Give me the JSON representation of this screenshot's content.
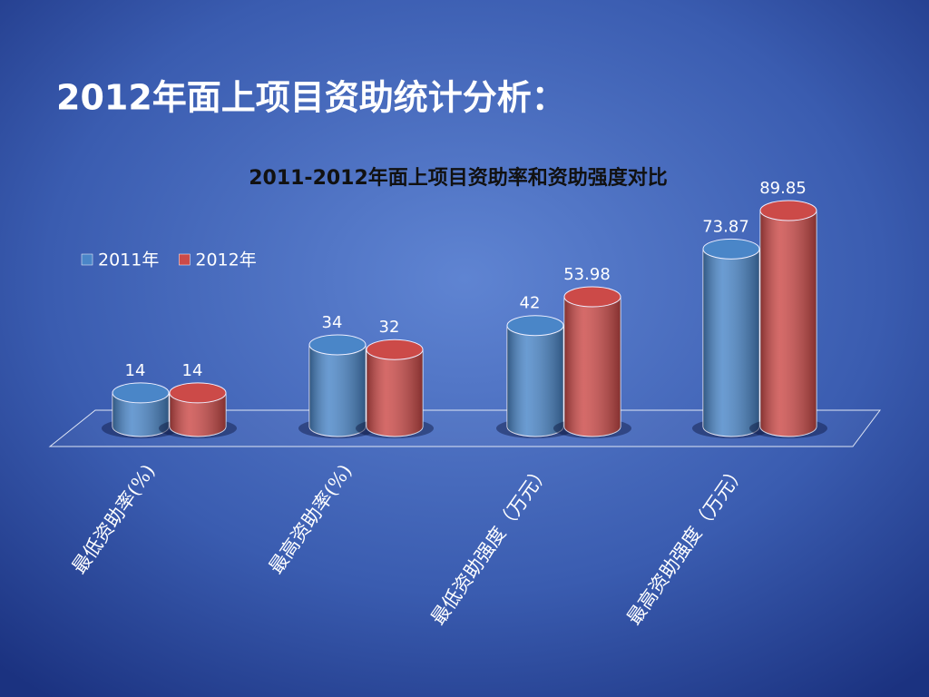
{
  "slide_title": "2012年面上项目资助统计分析：",
  "chart_data": {
    "type": "bar",
    "title": "2011-2012年面上项目资助率和资助强度对比",
    "categories": [
      "最低资助率(%)",
      "最高资助率(%)",
      "最低资助强度（万元）",
      "最高资助强度（万元）"
    ],
    "series": [
      {
        "name": "2011年",
        "color": "#4a86c8",
        "values": [
          14,
          34,
          42,
          73.87
        ]
      },
      {
        "name": "2012年",
        "color": "#cc4a48",
        "values": [
          14,
          32,
          53.98,
          89.85
        ]
      }
    ],
    "legend": "top-left"
  }
}
